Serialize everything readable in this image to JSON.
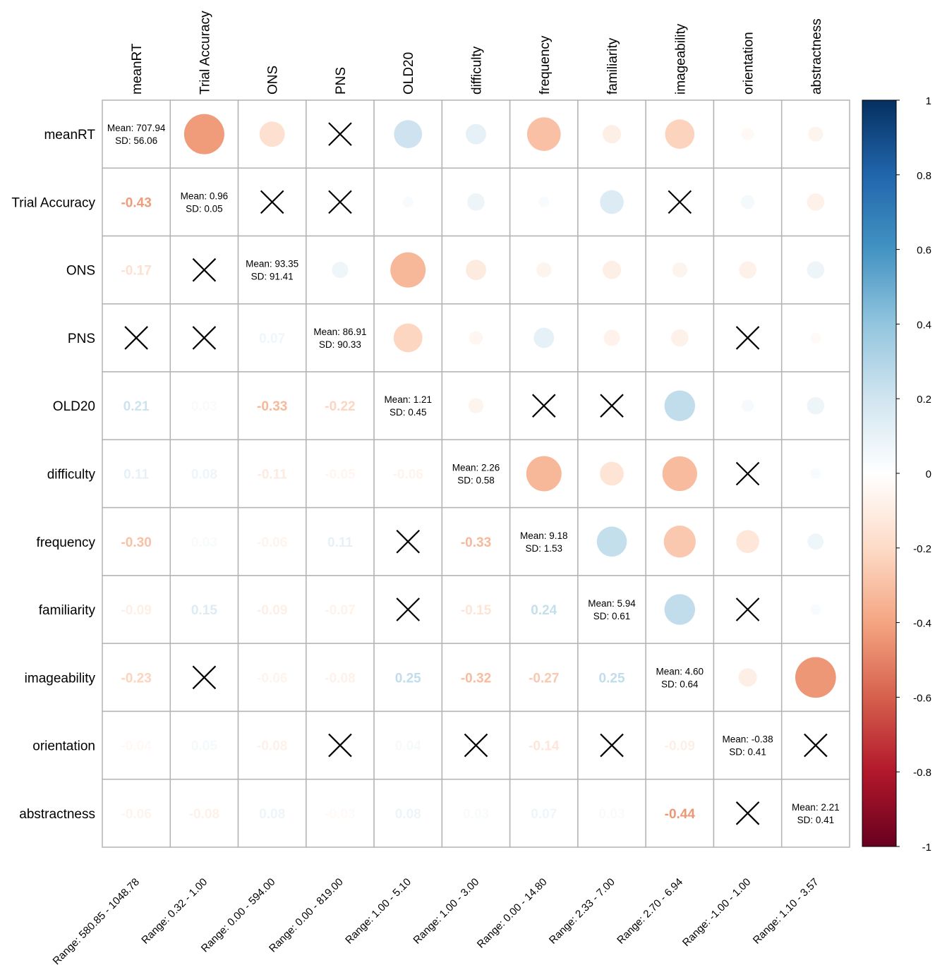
{
  "chart_data": {
    "type": "heatmap",
    "variables": [
      "meanRT",
      "Trial Accuracy",
      "ONS",
      "PNS",
      "OLD20",
      "difficulty",
      "frequency",
      "familiarity",
      "imageability",
      "orientation",
      "abstractness"
    ],
    "correlation_values": [
      [
        null,
        -0.43,
        -0.17,
        null,
        0.21,
        0.11,
        -0.3,
        -0.09,
        -0.23,
        -0.04,
        -0.06
      ],
      [
        -0.43,
        null,
        null,
        null,
        0.03,
        0.08,
        0.03,
        0.15,
        null,
        0.05,
        -0.08
      ],
      [
        -0.17,
        null,
        null,
        0.07,
        -0.33,
        -0.11,
        -0.06,
        -0.09,
        -0.06,
        -0.08,
        0.08
      ],
      [
        null,
        null,
        0.07,
        null,
        -0.22,
        -0.05,
        0.11,
        -0.07,
        -0.08,
        null,
        -0.03
      ],
      [
        0.21,
        0.03,
        -0.33,
        -0.22,
        null,
        -0.06,
        null,
        null,
        0.25,
        0.04,
        0.08
      ],
      [
        0.11,
        0.08,
        -0.11,
        -0.05,
        -0.06,
        null,
        -0.33,
        -0.15,
        -0.32,
        null,
        0.03
      ],
      [
        -0.3,
        0.03,
        -0.06,
        0.11,
        null,
        -0.33,
        null,
        0.24,
        -0.27,
        -0.14,
        0.07
      ],
      [
        -0.09,
        0.15,
        -0.09,
        -0.07,
        null,
        -0.15,
        0.24,
        null,
        0.25,
        null,
        0.03
      ],
      [
        -0.23,
        null,
        -0.06,
        -0.08,
        0.25,
        -0.32,
        -0.27,
        0.25,
        null,
        -0.09,
        -0.44
      ],
      [
        -0.04,
        0.05,
        -0.08,
        null,
        0.04,
        null,
        -0.14,
        null,
        -0.09,
        null,
        null
      ],
      [
        -0.06,
        -0.08,
        0.08,
        -0.03,
        0.08,
        0.03,
        0.07,
        0.03,
        -0.44,
        null,
        null
      ]
    ],
    "lower_labels": [
      [
        null,
        null,
        null,
        null,
        null,
        null,
        null,
        null,
        null,
        null,
        null
      ],
      [
        "-0.43",
        null,
        null,
        null,
        null,
        null,
        null,
        null,
        null,
        null,
        null
      ],
      [
        "-0.17",
        null,
        null,
        null,
        null,
        null,
        null,
        null,
        null,
        null,
        null
      ],
      [
        null,
        null,
        "0.07",
        null,
        null,
        null,
        null,
        null,
        null,
        null,
        null
      ],
      [
        "0.21",
        "0.03",
        "-0.33",
        "-0.22",
        null,
        null,
        null,
        null,
        null,
        null,
        null
      ],
      [
        "0.11",
        "0.08",
        "-0.11",
        "-0.05",
        "-0.06",
        null,
        null,
        null,
        null,
        null,
        null
      ],
      [
        "-0.30",
        "0.03",
        "-0.06",
        "0.11",
        null,
        "-0.33",
        null,
        null,
        null,
        null,
        null
      ],
      [
        "-0.09",
        "0.15",
        "-0.09",
        "-0.07",
        null,
        "-0.15",
        "0.24",
        null,
        null,
        null,
        null
      ],
      [
        "-0.23",
        null,
        "-0.06",
        "-0.08",
        "0.25",
        "-0.32",
        "-0.27",
        "0.25",
        null,
        null,
        null
      ],
      [
        "-0.04",
        "0.05",
        "-0.08",
        null,
        "0.04",
        null,
        "-0.14",
        null,
        "-0.09",
        null,
        null
      ],
      [
        "-0.06",
        "-0.08",
        "0.08",
        "-0.03",
        "0.08",
        "0.03",
        "0.07",
        "0.03",
        "-0.44",
        null,
        null
      ]
    ],
    "nonsignificant_marker": "cross",
    "diagonal": [
      {
        "mean": "Mean: 707.94",
        "sd": "SD: 56.06"
      },
      {
        "mean": "Mean: 0.96",
        "sd": "SD: 0.05"
      },
      {
        "mean": "Mean: 93.35",
        "sd": "SD: 91.41"
      },
      {
        "mean": "Mean: 86.91",
        "sd": "SD: 90.33"
      },
      {
        "mean": "Mean: 1.21",
        "sd": "SD: 0.45"
      },
      {
        "mean": "Mean: 2.26",
        "sd": "SD: 0.58"
      },
      {
        "mean": "Mean: 9.18",
        "sd": "SD: 1.53"
      },
      {
        "mean": "Mean: 5.94",
        "sd": "SD: 0.61"
      },
      {
        "mean": "Mean: 4.60",
        "sd": "SD: 0.64"
      },
      {
        "mean": "Mean: -0.38",
        "sd": "SD: 0.41"
      },
      {
        "mean": "Mean: 2.21",
        "sd": "SD: 0.41"
      }
    ],
    "ranges": [
      "Range: 580.85 - 1048.78",
      "Range: 0.32 - 1.00",
      "Range: 0.00 - 594.00",
      "Range: 0.00 - 819.00",
      "Range: 1.00 - 5.10",
      "Range: 1.00 - 3.00",
      "Range: 0.00 - 14.80",
      "Range: 2.33 - 7.00",
      "Range: 2.70 - 6.94",
      "Range: -1.00 - 1.00",
      "Range: 1.10 - 3.57"
    ],
    "colorbar": {
      "range": [
        -1,
        1
      ],
      "ticks": [
        "1",
        "0.8",
        "0.6",
        "0.4",
        "0.2",
        "0",
        "-0.2",
        "-0.4",
        "-0.6",
        "-0.8",
        "-1"
      ],
      "tick_values": [
        1,
        0.8,
        0.6,
        0.4,
        0.2,
        0,
        -0.2,
        -0.4,
        -0.6,
        -0.8,
        -1
      ],
      "stops": [
        "#67001f",
        "#b2182b",
        "#d6604d",
        "#f4a582",
        "#fddbc7",
        "#ffffff",
        "#d1e5f0",
        "#92c5de",
        "#4393c3",
        "#2166ac",
        "#053061"
      ]
    }
  }
}
